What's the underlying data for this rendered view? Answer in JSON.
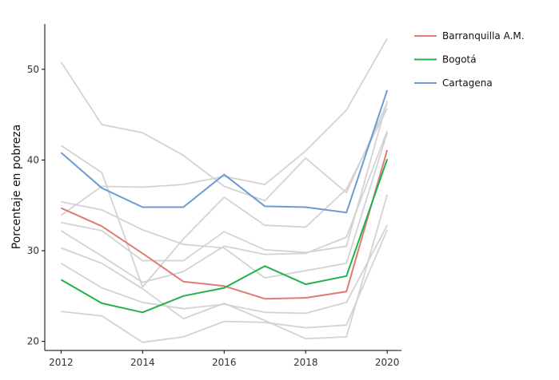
{
  "chart_data": {
    "type": "line",
    "title": "",
    "xlabel": "",
    "ylabel": "Porcentaje en pobreza",
    "x": [
      2012,
      2013,
      2014,
      2015,
      2016,
      2017,
      2018,
      2019,
      2020
    ],
    "xlim": [
      2011.6,
      2020.35
    ],
    "ylim": [
      19,
      55
    ],
    "x_ticks": [
      2012,
      2014,
      2016,
      2018,
      2020
    ],
    "y_ticks": [
      20,
      30,
      40,
      50
    ],
    "grid": false,
    "legend_position": "top-right",
    "highlight_series": [
      {
        "name": "Barranquilla A.M.",
        "color": "#e07b72",
        "values": [
          34.7,
          32.7,
          29.7,
          26.6,
          26.1,
          24.7,
          24.8,
          25.5,
          41.1
        ]
      },
      {
        "name": "Bogotá",
        "color": "#22b14c",
        "values": [
          26.8,
          24.2,
          23.2,
          25.0,
          25.9,
          28.3,
          26.3,
          27.2,
          40.1
        ]
      },
      {
        "name": "Cartagena",
        "color": "#6b9bd2",
        "values": [
          40.8,
          36.9,
          34.8,
          34.8,
          38.4,
          34.9,
          34.8,
          34.2,
          47.7
        ]
      }
    ],
    "background_series_color": "#d3d3d3",
    "background_series": [
      {
        "values": [
          50.8,
          43.9,
          43.0,
          40.5,
          37.1,
          35.5,
          40.2,
          36.4,
          46.3
        ]
      },
      {
        "values": [
          41.6,
          38.6,
          26.0,
          31.3,
          35.9,
          32.8,
          32.6,
          36.8,
          45.7
        ]
      },
      {
        "values": [
          33.9,
          37.1,
          37.0,
          37.3,
          38.2,
          37.3,
          41.0,
          45.5,
          53.4
        ]
      },
      {
        "values": [
          35.4,
          34.5,
          32.3,
          30.7,
          30.3,
          27.0,
          27.8,
          28.6,
          43.0
        ]
      },
      {
        "values": [
          33.1,
          32.2,
          28.9,
          28.9,
          32.1,
          30.1,
          29.8,
          30.5,
          46.5
        ]
      },
      {
        "values": [
          32.2,
          29.4,
          26.5,
          27.7,
          30.5,
          29.6,
          29.7,
          31.5,
          43.2
        ]
      },
      {
        "values": [
          30.3,
          28.6,
          25.8,
          22.5,
          24.2,
          22.3,
          20.3,
          20.5,
          36.2
        ]
      },
      {
        "values": [
          28.6,
          25.9,
          24.3,
          23.6,
          24.1,
          23.2,
          23.1,
          24.3,
          32.8
        ]
      },
      {
        "values": [
          23.3,
          22.8,
          19.9,
          20.5,
          22.2,
          22.1,
          21.5,
          21.8,
          32.3
        ]
      }
    ]
  }
}
